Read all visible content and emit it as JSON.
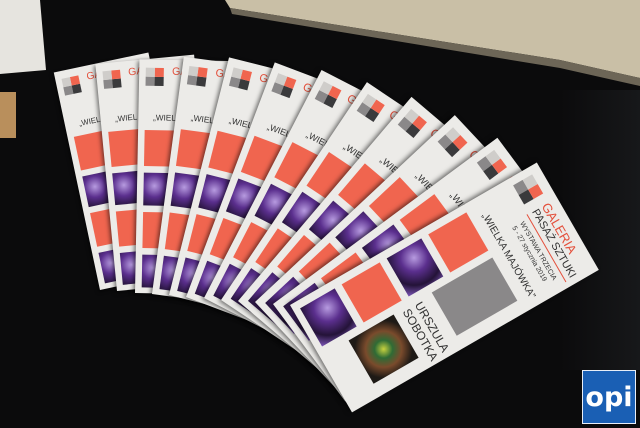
{
  "scene": {
    "colors": {
      "accent": "#f0654f",
      "gray": "#8a8889",
      "background": "#0b0b0c"
    }
  },
  "flyer": {
    "gallery_line1": "GALERIA",
    "gallery_line2": "PASAŻ SZTUKI",
    "exhibition": "WYSTAWA TRZECIA",
    "dates": "5 - 27 stycznia 2019",
    "title": "„WIELKA MAJÓWKA”",
    "artist_first": "URSZULA",
    "artist_last": "SOBOTKA",
    "partial_title": "„WIEL"
  },
  "watermark": {
    "text": "opi",
    "color": "#1a5fb4"
  }
}
